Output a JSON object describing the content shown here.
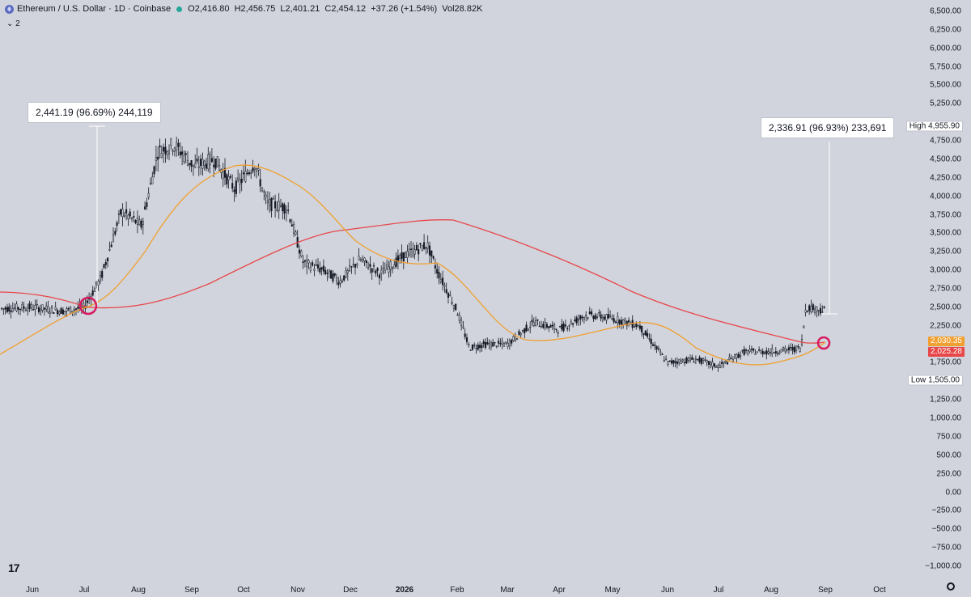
{
  "header": {
    "symbol_title": "Ethereum / U.S. Dollar · 1D · Coinbase",
    "open": "O2,416.80",
    "high": "H2,456.75",
    "low": "L2,401.21",
    "close": "C2,454.12",
    "change": "+37.26 (+1.54%)",
    "volume": "Vol28.82K",
    "collapsed_count": "2"
  },
  "annotations": {
    "left_measure": "2,441.19 (96.69%) 244,119",
    "right_measure": "2,336.91 (96.93%) 233,691"
  },
  "price_axis": {
    "labels": [
      "6,500.00",
      "6,250.00",
      "6,000.00",
      "5,750.00",
      "5,500.00",
      "5,250.00",
      "4,750.00",
      "4,500.00",
      "4,250.00",
      "4,000.00",
      "3,750.00",
      "3,500.00",
      "3,250.00",
      "3,000.00",
      "2,750.00",
      "2,500.00",
      "2,250.00",
      "1,750.00",
      "1,250.00",
      "1,000.00",
      "750.00",
      "500.00",
      "250.00",
      "0.00",
      "−250.00",
      "−500.00",
      "−750.00",
      "−1,000.00"
    ],
    "high_label": "High",
    "high_value": "4,955.90",
    "low_label": "Low",
    "low_value": "1,505.00",
    "ma_fast_value": "2,030.35",
    "ma_slow_value": "2,025.28"
  },
  "time_axis": {
    "labels": [
      "Jun",
      "Jul",
      "Aug",
      "Sep",
      "Oct",
      "Nov",
      "Dec",
      "2026",
      "Feb",
      "Mar",
      "Apr",
      "May",
      "Jun",
      "Jul",
      "Aug",
      "Sep",
      "Oct"
    ]
  },
  "colors": {
    "background": "#d1d4dc",
    "candle": "#131722",
    "ma_fast": "#f0a030",
    "ma_slow": "#e8474a",
    "cross_marker": "#d81b60"
  },
  "chart_data": {
    "type": "candlestick",
    "title": "Ethereum / U.S. Dollar · 1D · Coinbase",
    "ylim": [
      -1000,
      6500
    ],
    "approx_close_path": [
      {
        "x": "Jun",
        "y": 2480
      },
      {
        "x": "Jul",
        "y": 2500
      },
      {
        "x": "Aug",
        "y": 3800
      },
      {
        "x": "Sep",
        "y": 4300
      },
      {
        "x": "Oct",
        "y": 4400
      },
      {
        "x": "Nov",
        "y": 3100
      },
      {
        "x": "Dec",
        "y": 3000
      },
      {
        "x": "2026",
        "y": 3250
      },
      {
        "x": "Feb",
        "y": 2050
      },
      {
        "x": "Mar",
        "y": 2000
      },
      {
        "x": "Apr",
        "y": 2350
      },
      {
        "x": "May",
        "y": 2300
      },
      {
        "x": "Jun",
        "y": 1750
      },
      {
        "x": "Jul",
        "y": 1850
      },
      {
        "x": "Aug",
        "y": 1950
      },
      {
        "x": "Sep",
        "y": 2454
      }
    ],
    "series": [
      {
        "name": "fast MA",
        "color": "#f0a030"
      },
      {
        "name": "slow MA",
        "color": "#e8474a"
      }
    ],
    "high": 4955.9,
    "low": 1505.0,
    "last": 2454.12
  }
}
